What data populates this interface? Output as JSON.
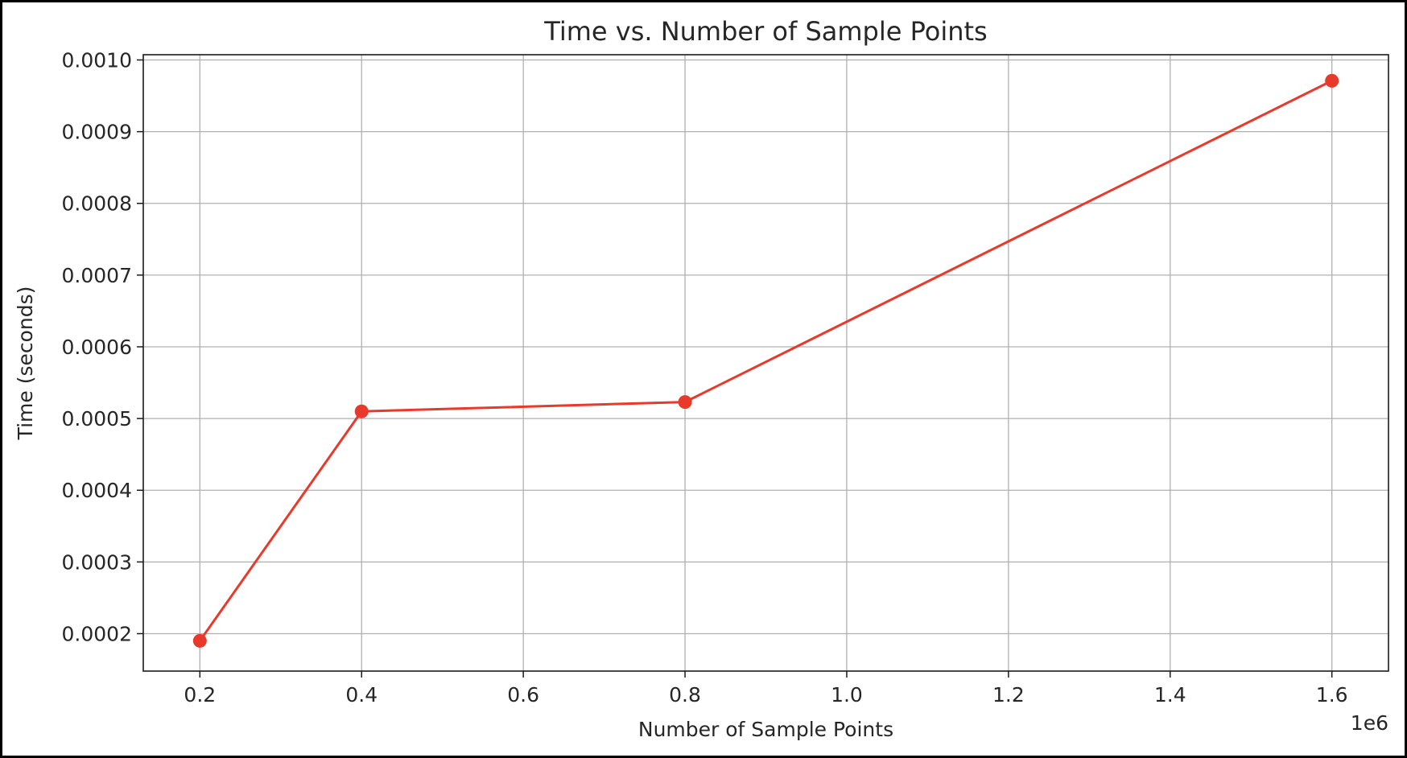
{
  "chart_data": {
    "type": "line",
    "title": "Time vs. Number of Sample Points",
    "xlabel": "Number of Sample Points",
    "ylabel": "Time (seconds)",
    "x_offset_text": "1e6",
    "xlim": [
      0.13,
      1.67
    ],
    "ylim": [
      0.0001478,
      0.0010073
    ],
    "x_ticks": [
      0.2,
      0.4,
      0.6,
      0.8,
      1.0,
      1.2,
      1.4,
      1.6
    ],
    "x_tick_labels": [
      "0.2",
      "0.4",
      "0.6",
      "0.8",
      "1.0",
      "1.2",
      "1.4",
      "1.6"
    ],
    "y_ticks": [
      0.0002,
      0.0003,
      0.0004,
      0.0005,
      0.0006,
      0.0007,
      0.0008,
      0.0009,
      0.001
    ],
    "y_tick_labels": [
      "0.0002",
      "0.0003",
      "0.0004",
      "0.0005",
      "0.0006",
      "0.0007",
      "0.0008",
      "0.0009",
      "0.0010"
    ],
    "grid": true,
    "series": [
      {
        "color": "#e8392b",
        "marker": "circle",
        "x": [
          0.2,
          0.4,
          0.8,
          1.6
        ],
        "y": [
          0.00019,
          0.00051,
          0.000523,
          0.000971
        ]
      }
    ]
  }
}
